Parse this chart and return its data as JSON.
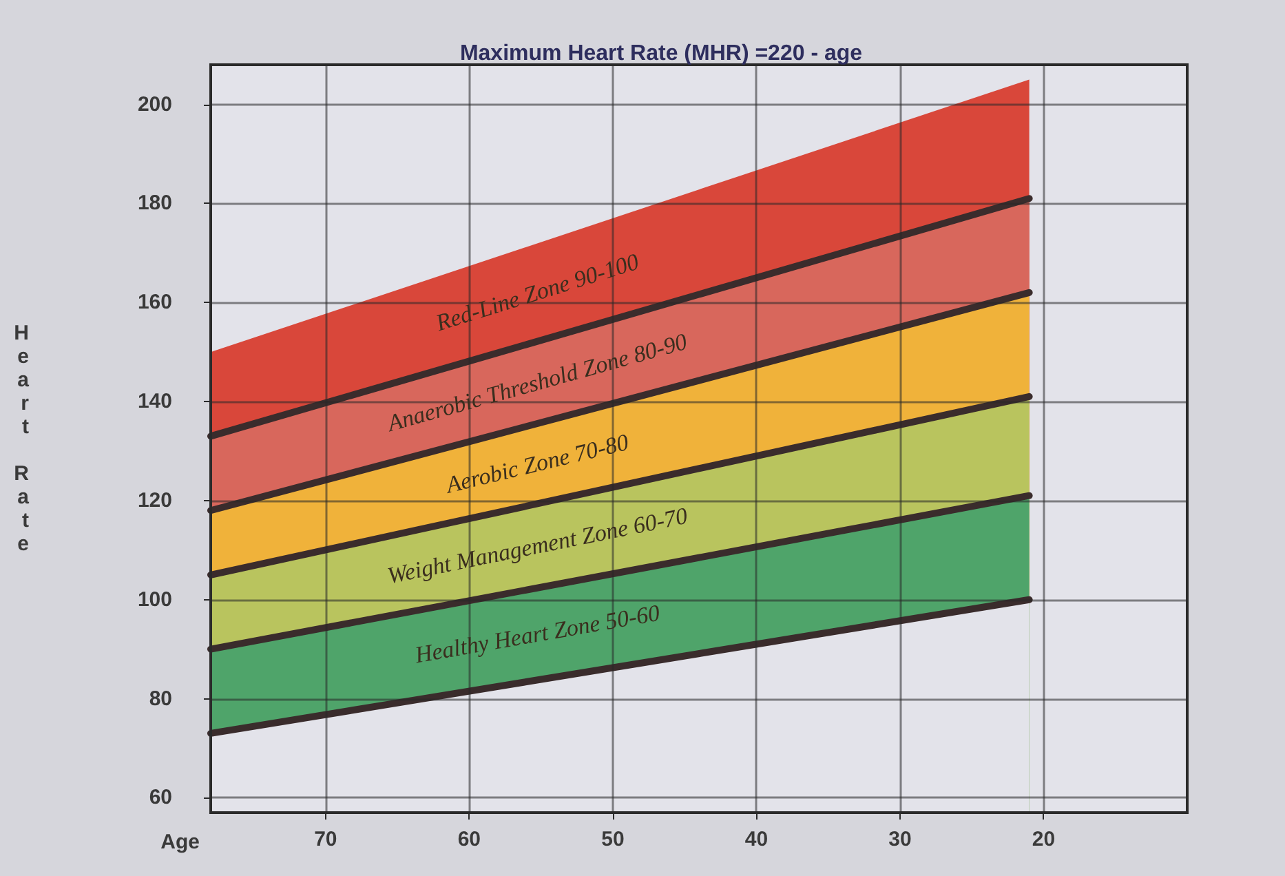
{
  "chart_data": {
    "type": "area",
    "title": "Maximum Heart Rate (MHR) =220 - age",
    "xlabel": "Age",
    "ylabel": "Heart Rate",
    "x": [
      78,
      21
    ],
    "xlim": [
      78,
      10
    ],
    "xticks": [
      70,
      60,
      50,
      40,
      30,
      20
    ],
    "ylim": [
      57,
      208
    ],
    "yticks": [
      60,
      80,
      100,
      120,
      140,
      160,
      180,
      200
    ],
    "grid": true,
    "legend": false,
    "series": [
      {
        "name": "Red-Line Zone 90-100",
        "color": "#d9473a",
        "values": [
          150,
          205
        ]
      },
      {
        "name": "Anaerobic Threshold Zone 80-90",
        "color": "#d8675c",
        "values": [
          133,
          181
        ]
      },
      {
        "name": "Aerobic Zone 70-80",
        "color": "#f0b23a",
        "values": [
          118,
          162
        ]
      },
      {
        "name": "Weight Management Zone 60-70",
        "color": "#b9c45e",
        "values": [
          105,
          141
        ]
      },
      {
        "name": "Healthy Heart Zone 50-60",
        "color": "#4fa46a",
        "values": [
          90,
          121
        ]
      },
      {
        "color": "#e3e3ea",
        "values": [
          73,
          100
        ]
      }
    ]
  }
}
